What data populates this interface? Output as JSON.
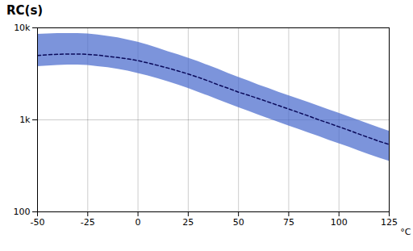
{
  "chart_data": {
    "type": "line",
    "title": "RC(s)",
    "xlabel": "°C",
    "log": "y",
    "grid": true,
    "xlim": [
      -50,
      125
    ],
    "ylim": [
      100,
      10000
    ],
    "xticks": [
      -50,
      -25,
      0,
      25,
      50,
      75,
      100,
      125
    ],
    "yticks": [
      100,
      {
        "value": 1000,
        "label": "1k"
      },
      {
        "value": 10000,
        "label": "10k"
      }
    ],
    "x": [
      -50,
      -45,
      -40,
      -35,
      -30,
      -25,
      -20,
      -15,
      -10,
      -5,
      0,
      5,
      10,
      15,
      20,
      25,
      30,
      35,
      40,
      45,
      50,
      55,
      60,
      65,
      70,
      75,
      80,
      85,
      90,
      95,
      100,
      105,
      110,
      115,
      120,
      125
    ],
    "series": [
      {
        "type": "band",
        "color": "#4466cc",
        "upper": [
          8500,
          8600,
          8700,
          8700,
          8700,
          8600,
          8400,
          8100,
          7800,
          7400,
          7000,
          6500,
          6000,
          5500,
          5100,
          4700,
          4300,
          3900,
          3550,
          3200,
          2900,
          2650,
          2400,
          2200,
          2000,
          1830,
          1680,
          1540,
          1410,
          1290,
          1180,
          1080,
          985,
          900,
          820,
          755
        ],
        "lower": [
          3800,
          3850,
          3900,
          3950,
          3950,
          3900,
          3800,
          3700,
          3550,
          3400,
          3200,
          3000,
          2800,
          2600,
          2400,
          2200,
          2000,
          1820,
          1650,
          1500,
          1360,
          1240,
          1130,
          1030,
          940,
          860,
          790,
          720,
          660,
          600,
          550,
          505,
          460,
          420,
          385,
          355
        ]
      },
      {
        "type": "line",
        "color": "#0a0a5a",
        "line_style": "dashed",
        "values": [
          5000,
          5100,
          5150,
          5200,
          5200,
          5150,
          5050,
          4900,
          4750,
          4600,
          4400,
          4150,
          3900,
          3650,
          3400,
          3150,
          2900,
          2650,
          2400,
          2200,
          2000,
          1850,
          1700,
          1560,
          1430,
          1310,
          1200,
          1100,
          1000,
          920,
          840,
          770,
          700,
          640,
          585,
          540
        ]
      }
    ]
  }
}
